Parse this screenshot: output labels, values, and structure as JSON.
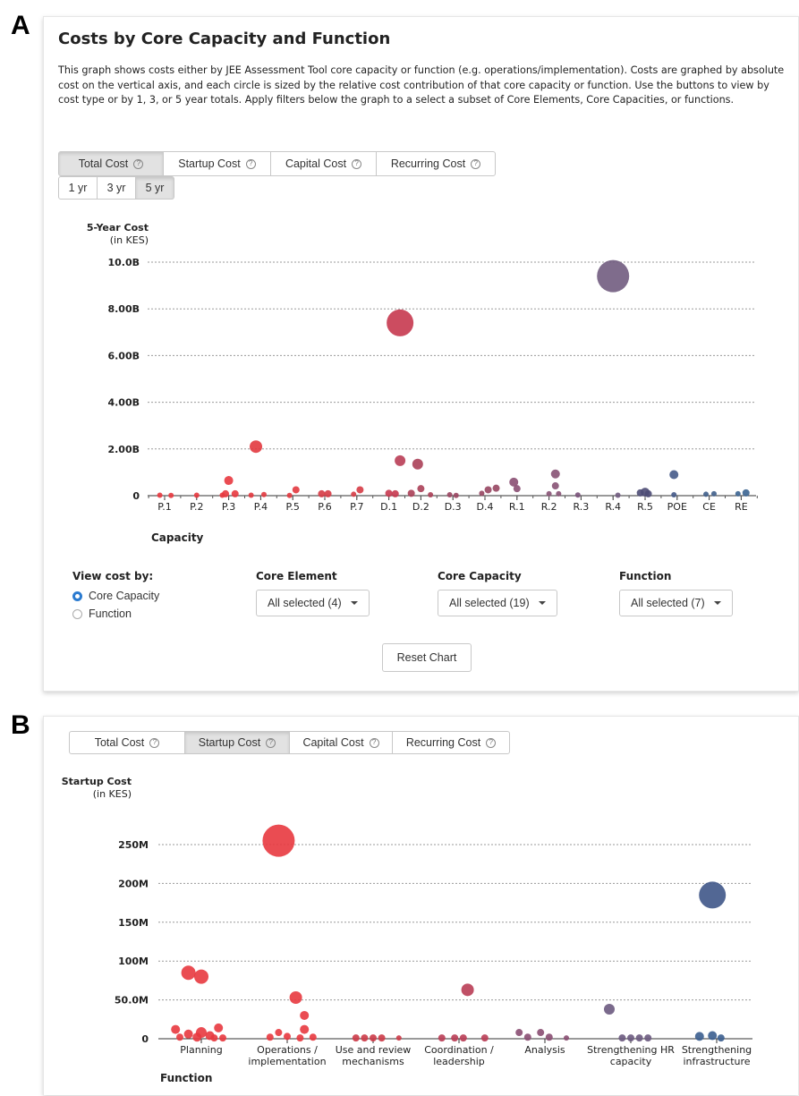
{
  "panel_labels": [
    "A",
    "B"
  ],
  "panelA": {
    "title": "Costs by Core Capacity and Function",
    "description": "This graph shows costs either by JEE Assessment Tool core capacity or function (e.g. operations/implementation). Costs are graphed by absolute cost on the vertical axis, and each circle is sized by the relative cost contribution of that core capacity or function. Use the buttons to view by cost type or by 1, 3, or 5 year totals. Apply filters below the graph to a select a subset of Core Elements, Core Capacities, or functions.",
    "cost_tabs": [
      "Total Cost",
      "Startup Cost",
      "Capital Cost",
      "Recurring Cost"
    ],
    "active_cost_tab": "Total Cost",
    "year_tabs": [
      "1 yr",
      "3 yr",
      "5 yr"
    ],
    "active_year_tab": "5 yr",
    "view_by": {
      "label": "View cost by:",
      "options": [
        "Core Capacity",
        "Function"
      ],
      "selected": "Core Capacity"
    },
    "filters": [
      {
        "label": "Core Element",
        "value": "All selected (4)"
      },
      {
        "label": "Core Capacity",
        "value": "All selected (19)"
      },
      {
        "label": "Function",
        "value": "All selected (7)"
      }
    ],
    "reset_label": "Reset Chart"
  },
  "panelB": {
    "cost_tabs": [
      "Total Cost",
      "Startup Cost",
      "Capital Cost",
      "Recurring Cost"
    ],
    "active_cost_tab": "Startup Cost"
  },
  "colors": {
    "red": "#e8383f",
    "crimson": "#c7384f",
    "rose": "#a84560",
    "mauve": "#8a4e72",
    "purple": "#6c5a80",
    "navy": "#3f4e7c",
    "blue": "#3b5e8f"
  },
  "chart_data": [
    {
      "type": "scatter",
      "title": "",
      "ylabel": "5-Year Cost",
      "ylabel_unit": "(in KES)",
      "xlabel": "Capacity",
      "ylim": [
        0,
        10000000000
      ],
      "yticks": [
        0,
        2000000000,
        4000000000,
        6000000000,
        8000000000,
        10000000000
      ],
      "ytick_labels": [
        "0",
        "2.00B",
        "4.00B",
        "6.00B",
        "8.00B",
        "10.0B"
      ],
      "grid": true,
      "categories": [
        "P.1",
        "P.2",
        "P.3",
        "P.4",
        "P.5",
        "P.6",
        "P.7",
        "D.1",
        "D.2",
        "D.3",
        "D.4",
        "R.1",
        "R.2",
        "R.3",
        "R.4",
        "R.5",
        "POE",
        "CE",
        "RE"
      ],
      "points": [
        {
          "x": "P.1",
          "dx": -0.15,
          "y": 20000000,
          "r": 3,
          "color": "#e8383f"
        },
        {
          "x": "P.1",
          "dx": 0.2,
          "y": 10000000,
          "r": 3,
          "color": "#e8383f"
        },
        {
          "x": "P.2",
          "dx": 0.0,
          "y": 20000000,
          "r": 3,
          "color": "#e8383f"
        },
        {
          "x": "P.3",
          "dx": 0.0,
          "y": 650000000,
          "r": 5,
          "color": "#e8383f"
        },
        {
          "x": "P.3",
          "dx": -0.1,
          "y": 80000000,
          "r": 4,
          "color": "#e8383f"
        },
        {
          "x": "P.3",
          "dx": 0.2,
          "y": 80000000,
          "r": 4,
          "color": "#e8383f"
        },
        {
          "x": "P.3",
          "dx": -0.2,
          "y": 20000000,
          "r": 3,
          "color": "#e8383f"
        },
        {
          "x": "P.4",
          "dx": -0.15,
          "y": 2100000000,
          "r": 7,
          "color": "#e2393f"
        },
        {
          "x": "P.4",
          "dx": 0.1,
          "y": 50000000,
          "r": 3,
          "color": "#e2393f"
        },
        {
          "x": "P.4",
          "dx": -0.3,
          "y": 20000000,
          "r": 3,
          "color": "#e2393f"
        },
        {
          "x": "P.5",
          "dx": 0.1,
          "y": 250000000,
          "r": 4,
          "color": "#e2393f"
        },
        {
          "x": "P.5",
          "dx": -0.1,
          "y": 10000000,
          "r": 3,
          "color": "#e2393f"
        },
        {
          "x": "P.6",
          "dx": -0.1,
          "y": 80000000,
          "r": 4,
          "color": "#d63b45"
        },
        {
          "x": "P.6",
          "dx": 0.1,
          "y": 80000000,
          "r": 4,
          "color": "#d63b45"
        },
        {
          "x": "P.7",
          "dx": 0.1,
          "y": 250000000,
          "r": 4,
          "color": "#d63b45"
        },
        {
          "x": "P.7",
          "dx": -0.1,
          "y": 60000000,
          "r": 3,
          "color": "#d63b45"
        },
        {
          "x": "D.1",
          "dx": 0.35,
          "y": 7400000000,
          "r": 15,
          "color": "#c7384f"
        },
        {
          "x": "D.1",
          "dx": 0.35,
          "y": 1500000000,
          "r": 6,
          "color": "#b93d55"
        },
        {
          "x": "D.1",
          "dx": 0.0,
          "y": 100000000,
          "r": 4,
          "color": "#c7384f"
        },
        {
          "x": "D.1",
          "dx": 0.2,
          "y": 80000000,
          "r": 4,
          "color": "#c7384f"
        },
        {
          "x": "D.2",
          "dx": -0.1,
          "y": 1350000000,
          "r": 6,
          "color": "#ab4058"
        },
        {
          "x": "D.2",
          "dx": 0.0,
          "y": 300000000,
          "r": 4,
          "color": "#ab4058"
        },
        {
          "x": "D.2",
          "dx": -0.3,
          "y": 100000000,
          "r": 4,
          "color": "#ab4058"
        },
        {
          "x": "D.2",
          "dx": 0.3,
          "y": 40000000,
          "r": 3,
          "color": "#ab4058"
        },
        {
          "x": "D.3",
          "dx": -0.1,
          "y": 40000000,
          "r": 3,
          "color": "#9a4560"
        },
        {
          "x": "D.3",
          "dx": 0.1,
          "y": 10000000,
          "r": 3,
          "color": "#9a4560"
        },
        {
          "x": "D.4",
          "dx": 0.1,
          "y": 250000000,
          "r": 4,
          "color": "#974662"
        },
        {
          "x": "D.4",
          "dx": 0.35,
          "y": 320000000,
          "r": 4,
          "color": "#974662"
        },
        {
          "x": "D.4",
          "dx": -0.1,
          "y": 100000000,
          "r": 3,
          "color": "#974662"
        },
        {
          "x": "R.1",
          "dx": -0.1,
          "y": 580000000,
          "r": 5,
          "color": "#8a4e72"
        },
        {
          "x": "R.1",
          "dx": 0.0,
          "y": 300000000,
          "r": 4,
          "color": "#8a4e72"
        },
        {
          "x": "R.2",
          "dx": 0.2,
          "y": 930000000,
          "r": 5,
          "color": "#875274"
        },
        {
          "x": "R.2",
          "dx": 0.2,
          "y": 420000000,
          "r": 4,
          "color": "#875274"
        },
        {
          "x": "R.2",
          "dx": 0.0,
          "y": 80000000,
          "r": 3,
          "color": "#875274"
        },
        {
          "x": "R.2",
          "dx": 0.3,
          "y": 80000000,
          "r": 3,
          "color": "#875274"
        },
        {
          "x": "R.3",
          "dx": -0.1,
          "y": 30000000,
          "r": 3,
          "color": "#7a527a"
        },
        {
          "x": "R.4",
          "dx": 0.0,
          "y": 9400000000,
          "r": 18,
          "color": "#715c80"
        },
        {
          "x": "R.4",
          "dx": 0.15,
          "y": 20000000,
          "r": 3,
          "color": "#715c80"
        },
        {
          "x": "R.5",
          "dx": -0.15,
          "y": 120000000,
          "r": 4,
          "color": "#4e4c76"
        },
        {
          "x": "R.5",
          "dx": 0.0,
          "y": 150000000,
          "r": 5,
          "color": "#4e4c76"
        },
        {
          "x": "R.5",
          "dx": 0.1,
          "y": 80000000,
          "r": 4,
          "color": "#4e4c76"
        },
        {
          "x": "POE",
          "dx": -0.1,
          "y": 900000000,
          "r": 5,
          "color": "#455a88"
        },
        {
          "x": "POE",
          "dx": -0.1,
          "y": 40000000,
          "r": 3,
          "color": "#455a88"
        },
        {
          "x": "CE",
          "dx": -0.1,
          "y": 60000000,
          "r": 3,
          "color": "#3f5e8a"
        },
        {
          "x": "CE",
          "dx": 0.15,
          "y": 80000000,
          "r": 3,
          "color": "#3f5e8a"
        },
        {
          "x": "RE",
          "dx": -0.1,
          "y": 80000000,
          "r": 3,
          "color": "#3b6491"
        },
        {
          "x": "RE",
          "dx": 0.15,
          "y": 120000000,
          "r": 4,
          "color": "#3b6491"
        }
      ]
    },
    {
      "type": "scatter",
      "title": "",
      "ylabel": "Startup Cost",
      "ylabel_unit": "(in KES)",
      "xlabel": "Function",
      "ylim": [
        0,
        265000000
      ],
      "yticks": [
        0,
        50000000,
        100000000,
        150000000,
        200000000,
        250000000
      ],
      "ytick_labels": [
        "0",
        "50.0M",
        "100M",
        "150M",
        "200M",
        "250M"
      ],
      "grid": true,
      "categories": [
        "Planning",
        "Operations / implementation",
        "Use and review mechanisms",
        "Coordination / leadership",
        "Analysis",
        "Strengthening HR capacity",
        "Strengthening infrastructure"
      ],
      "category_lines": [
        [
          "Planning"
        ],
        [
          "Operations /",
          "implementation"
        ],
        [
          "Use and review",
          "mechanisms"
        ],
        [
          "Coordination /",
          "leadership"
        ],
        [
          "Analysis"
        ],
        [
          "Strengthening HR",
          "capacity"
        ],
        [
          "Strengthening",
          "infrastructure"
        ]
      ],
      "points": [
        {
          "x": 0,
          "dx": -0.15,
          "y": 85000000,
          "r": 8,
          "color": "#e8383f"
        },
        {
          "x": 0,
          "dx": 0.0,
          "y": 80000000,
          "r": 8,
          "color": "#e8383f"
        },
        {
          "x": 0,
          "dx": -0.3,
          "y": 12000000,
          "r": 5,
          "color": "#e8383f"
        },
        {
          "x": 0,
          "dx": 0.2,
          "y": 14000000,
          "r": 5,
          "color": "#e8383f"
        },
        {
          "x": 0,
          "dx": -0.15,
          "y": 6000000,
          "r": 5,
          "color": "#e8383f"
        },
        {
          "x": 0,
          "dx": 0.0,
          "y": 8000000,
          "r": 6,
          "color": "#e8383f"
        },
        {
          "x": 0,
          "dx": 0.1,
          "y": 4000000,
          "r": 5,
          "color": "#e8383f"
        },
        {
          "x": 0,
          "dx": -0.05,
          "y": 2000000,
          "r": 5,
          "color": "#e8383f"
        },
        {
          "x": 0,
          "dx": -0.25,
          "y": 2000000,
          "r": 4,
          "color": "#e8383f"
        },
        {
          "x": 0,
          "dx": 0.15,
          "y": 1000000,
          "r": 4,
          "color": "#e8383f"
        },
        {
          "x": 0,
          "dx": 0.25,
          "y": 1000000,
          "r": 4,
          "color": "#e8383f"
        },
        {
          "x": 1,
          "dx": -0.1,
          "y": 255000000,
          "r": 18,
          "color": "#e8383f"
        },
        {
          "x": 1,
          "dx": 0.1,
          "y": 53000000,
          "r": 7,
          "color": "#e8383f"
        },
        {
          "x": 1,
          "dx": 0.2,
          "y": 30000000,
          "r": 5,
          "color": "#e8383f"
        },
        {
          "x": 1,
          "dx": 0.2,
          "y": 12000000,
          "r": 5,
          "color": "#e8383f"
        },
        {
          "x": 1,
          "dx": -0.1,
          "y": 8000000,
          "r": 4,
          "color": "#e8383f"
        },
        {
          "x": 1,
          "dx": 0.0,
          "y": 3000000,
          "r": 4,
          "color": "#e8383f"
        },
        {
          "x": 1,
          "dx": -0.2,
          "y": 2000000,
          "r": 4,
          "color": "#e8383f"
        },
        {
          "x": 1,
          "dx": 0.3,
          "y": 2000000,
          "r": 4,
          "color": "#e8383f"
        },
        {
          "x": 1,
          "dx": 0.15,
          "y": 1000000,
          "r": 4,
          "color": "#e8383f"
        },
        {
          "x": 2,
          "dx": -0.2,
          "y": 1000000,
          "r": 4,
          "color": "#cc3b48"
        },
        {
          "x": 2,
          "dx": -0.1,
          "y": 1000000,
          "r": 4,
          "color": "#cc3b48"
        },
        {
          "x": 2,
          "dx": 0.0,
          "y": 1000000,
          "r": 4,
          "color": "#cc3b48"
        },
        {
          "x": 2,
          "dx": 0.1,
          "y": 1000000,
          "r": 4,
          "color": "#cc3b48"
        },
        {
          "x": 2,
          "dx": 0.3,
          "y": 1000000,
          "r": 3,
          "color": "#cc3b48"
        },
        {
          "x": 3,
          "dx": 0.1,
          "y": 63000000,
          "r": 7,
          "color": "#b93d55"
        },
        {
          "x": 3,
          "dx": -0.2,
          "y": 1000000,
          "r": 4,
          "color": "#b93d55"
        },
        {
          "x": 3,
          "dx": -0.05,
          "y": 1000000,
          "r": 4,
          "color": "#b93d55"
        },
        {
          "x": 3,
          "dx": 0.05,
          "y": 1000000,
          "r": 4,
          "color": "#b93d55"
        },
        {
          "x": 3,
          "dx": 0.3,
          "y": 1000000,
          "r": 4,
          "color": "#b93d55"
        },
        {
          "x": 4,
          "dx": -0.3,
          "y": 8000000,
          "r": 4,
          "color": "#8a4e72"
        },
        {
          "x": 4,
          "dx": -0.05,
          "y": 8000000,
          "r": 4,
          "color": "#8a4e72"
        },
        {
          "x": 4,
          "dx": -0.2,
          "y": 2000000,
          "r": 4,
          "color": "#8a4e72"
        },
        {
          "x": 4,
          "dx": 0.05,
          "y": 2000000,
          "r": 4,
          "color": "#8a4e72"
        },
        {
          "x": 4,
          "dx": 0.25,
          "y": 1000000,
          "r": 3,
          "color": "#8a4e72"
        },
        {
          "x": 5,
          "dx": -0.25,
          "y": 38000000,
          "r": 6,
          "color": "#6c5a80"
        },
        {
          "x": 5,
          "dx": -0.1,
          "y": 1000000,
          "r": 4,
          "color": "#6c5a80"
        },
        {
          "x": 5,
          "dx": 0.0,
          "y": 1000000,
          "r": 4,
          "color": "#6c5a80"
        },
        {
          "x": 5,
          "dx": 0.1,
          "y": 1000000,
          "r": 4,
          "color": "#6c5a80"
        },
        {
          "x": 5,
          "dx": 0.2,
          "y": 1000000,
          "r": 4,
          "color": "#6c5a80"
        },
        {
          "x": 6,
          "dx": -0.05,
          "y": 185000000,
          "r": 15,
          "color": "#3f5688"
        },
        {
          "x": 6,
          "dx": -0.2,
          "y": 3000000,
          "r": 5,
          "color": "#3b5e8f"
        },
        {
          "x": 6,
          "dx": -0.05,
          "y": 4000000,
          "r": 5,
          "color": "#3b5e8f"
        },
        {
          "x": 6,
          "dx": 0.05,
          "y": 1000000,
          "r": 4,
          "color": "#3b5e8f"
        }
      ]
    }
  ]
}
